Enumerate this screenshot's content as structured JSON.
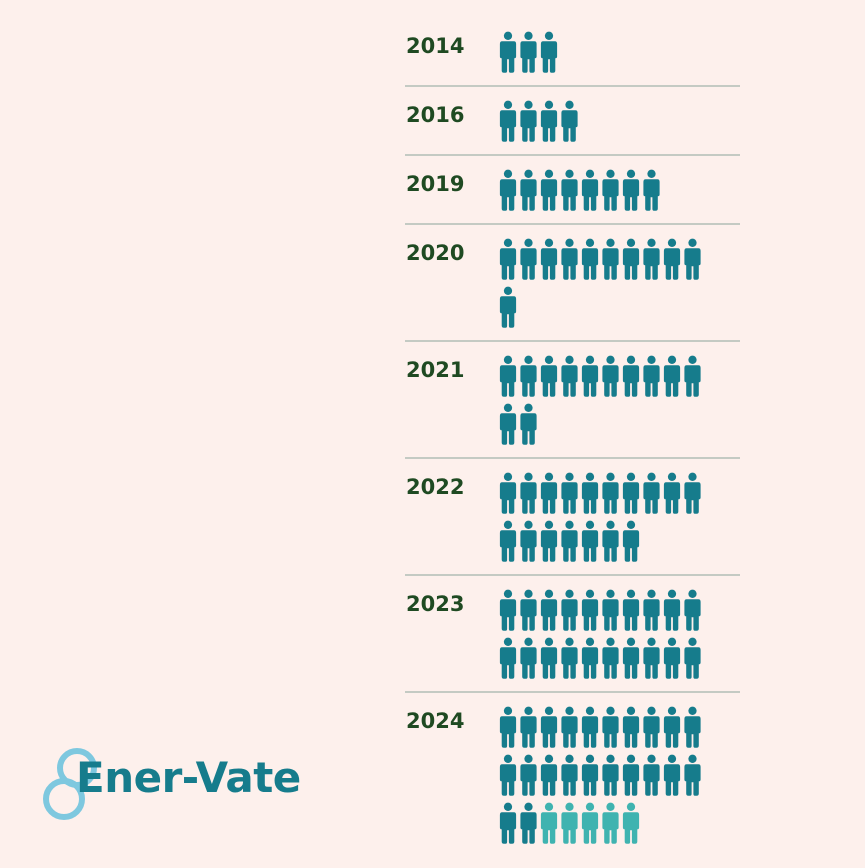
{
  "colors": {
    "background": "#fdf0ec",
    "year_text": "#1f4a22",
    "person_dark": "#167c8c",
    "person_light": "#3fb3b0",
    "logo_text": "#167c8c",
    "logo_ring": "#7ec8df"
  },
  "logo": {
    "name": "Ener-Vate",
    "icon": "infinity-loop-icon"
  },
  "chart_data": {
    "type": "pictogram",
    "unit_icon": "person-icon",
    "icons_per_row": 10,
    "years": [
      {
        "label": "2014",
        "count": 3,
        "highlight": 0
      },
      {
        "label": "2016",
        "count": 4,
        "highlight": 0
      },
      {
        "label": "2019",
        "count": 8,
        "highlight": 0
      },
      {
        "label": "2020",
        "count": 11,
        "highlight": 0
      },
      {
        "label": "2021",
        "count": 12,
        "highlight": 0
      },
      {
        "label": "2022",
        "count": 17,
        "highlight": 0
      },
      {
        "label": "2023",
        "count": 20,
        "highlight": 0
      },
      {
        "label": "2024",
        "count": 27,
        "highlight": 5
      }
    ]
  }
}
